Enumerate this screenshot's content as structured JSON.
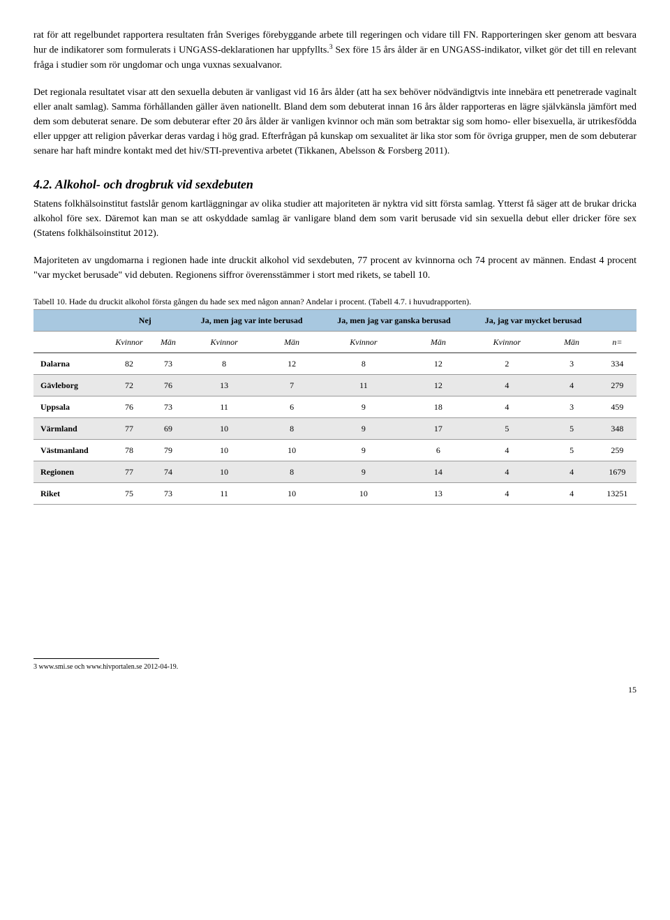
{
  "para1": "rat för att regelbundet rapportera resultaten från Sveriges förebyggande arbete till regeringen och vidare till FN. Rapporteringen sker genom att besvara hur de indikatorer som formulerats i UNGASS-deklarationen har uppfyllts.",
  "para1_sup": "3",
  "para1_b": " Sex före 15 års ålder är en UNGASS-indikator, vilket gör det till en relevant fråga i studier som rör ungdomar och unga vuxnas sexualvanor.",
  "para2": "Det regionala resultatet visar att den sexuella debuten är vanligast vid 16 års ålder (att ha sex behöver nödvändigtvis inte innebära ett penetrerade vaginalt eller analt samlag). Samma förhållanden gäller även nationellt. Bland dem som debuterat innan 16 års ålder rapporteras en lägre självkänsla jämfört med dem som debuterat senare. De som debuterar efter 20 års ålder är vanligen kvinnor och män som betraktar sig som homo- eller bisexuella, är utrikesfödda eller uppger att religion påverkar deras vardag i hög grad. Efterfrågan på kunskap om sexualitet är lika stor som för övriga grupper, men de som debuterar senare har haft mindre kontakt med det hiv/STI-preventiva arbetet (Tikkanen, Abelsson & Forsberg 2011).",
  "section_heading": "4.2. Alkohol- och drogbruk vid sexdebuten",
  "section_body1": "Statens folkhälsoinstitut fastslår genom kartläggningar av olika studier att majoriteten är nyktra vid sitt första samlag. Ytterst få säger att de brukar dricka alkohol före sex. Däremot kan man se att oskyddade samlag är vanligare bland dem som varit berusade vid sin sexuella debut eller dricker före sex (Statens folkhälsoinstitut 2012).",
  "section_body2": "Majoriteten av ungdomarna i regionen hade inte druckit alkohol vid sexdebuten, 77 procent av kvinnorna och 74 procent av männen. Endast 4 procent \"var mycket berusade\" vid debuten. Regionens siffror överensstämmer i stort med rikets, se tabell 10.",
  "table_caption": "Tabell 10. Hade du druckit alkohol första gången du hade sex med någon annan? Andelar i procent. (Tabell 4.7. i huvudrapporten).",
  "headers": {
    "col1": "",
    "g1": "Nej",
    "g2": "Ja, men jag var inte berusad",
    "g3": "Ja, men jag var ganska berusad",
    "g4": "Ja, jag var mycket berusad",
    "g5": ""
  },
  "subheaders": {
    "kv": "Kvinnor",
    "man": "Män",
    "n": "n="
  },
  "rows": [
    {
      "label": "Dalarna",
      "v": [
        "82",
        "73",
        "8",
        "12",
        "8",
        "12",
        "2",
        "3",
        "334"
      ]
    },
    {
      "label": "Gävleborg",
      "v": [
        "72",
        "76",
        "13",
        "7",
        "11",
        "12",
        "4",
        "4",
        "279"
      ]
    },
    {
      "label": "Uppsala",
      "v": [
        "76",
        "73",
        "11",
        "6",
        "9",
        "18",
        "4",
        "3",
        "459"
      ]
    },
    {
      "label": "Värmland",
      "v": [
        "77",
        "69",
        "10",
        "8",
        "9",
        "17",
        "5",
        "5",
        "348"
      ]
    },
    {
      "label": "Västmanland",
      "v": [
        "78",
        "79",
        "10",
        "10",
        "9",
        "6",
        "4",
        "5",
        "259"
      ]
    },
    {
      "label": "Regionen",
      "v": [
        "77",
        "74",
        "10",
        "8",
        "9",
        "14",
        "4",
        "4",
        "1679"
      ]
    },
    {
      "label": "Riket",
      "v": [
        "75",
        "73",
        "11",
        "10",
        "10",
        "13",
        "4",
        "4",
        "13251"
      ]
    }
  ],
  "footnote": "3  www.smi.se och www.hivportalen.se 2012-04-19.",
  "page_number": "15"
}
